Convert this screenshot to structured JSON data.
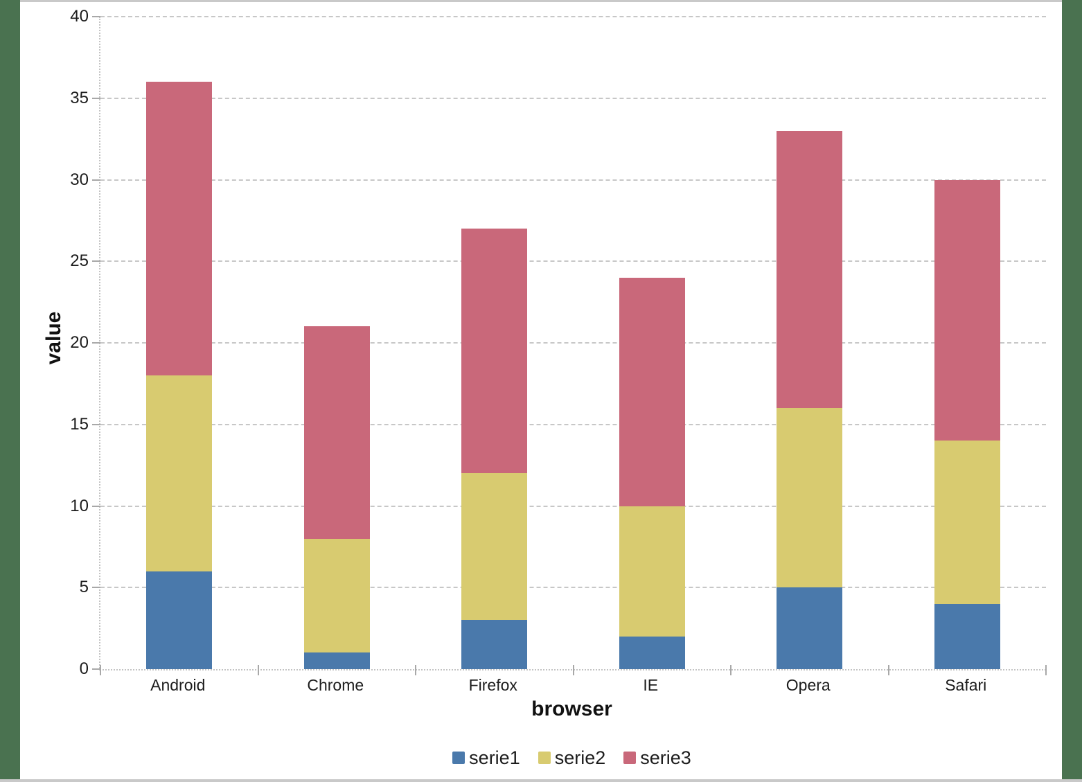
{
  "frame": {
    "side_strip_color": "#4a7250",
    "edge_line_color": "#c9c9c9",
    "canvas_color": "#ffffff"
  },
  "chart_data": {
    "type": "bar",
    "stacked": true,
    "title": "",
    "xlabel": "browser",
    "ylabel": "value",
    "categories": [
      "Android",
      "Chrome",
      "Firefox",
      "IE",
      "Opera",
      "Safari"
    ],
    "series": [
      {
        "name": "serie1",
        "color": "#4a79ab",
        "values": [
          6,
          1,
          3,
          2,
          5,
          4
        ]
      },
      {
        "name": "serie2",
        "color": "#d8cb70",
        "values": [
          12,
          7,
          9,
          8,
          11,
          10
        ]
      },
      {
        "name": "serie3",
        "color": "#c9687a",
        "values": [
          18,
          13,
          15,
          14,
          17,
          16
        ]
      }
    ],
    "stack_totals": [
      36,
      21,
      27,
      24,
      33,
      30
    ],
    "ylim": [
      0,
      40
    ],
    "ytick_step": 5,
    "ytick_labels": [
      "0",
      "5",
      "10",
      "15",
      "20",
      "25",
      "30",
      "35",
      "40"
    ],
    "grid": "horizontal dashed",
    "gridline_color": "#c7c7c7",
    "axis_line_style": "dotted gray",
    "legend_position": "bottom-center",
    "legend_entries": [
      "serie1",
      "serie2",
      "serie3"
    ]
  }
}
